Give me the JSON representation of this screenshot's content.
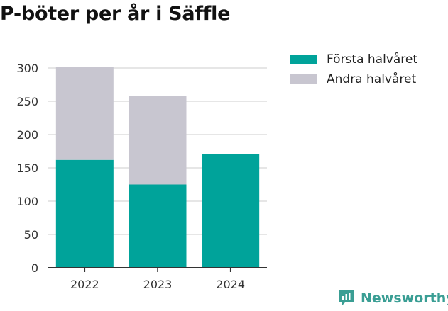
{
  "title": "P-böter per år i Säffle",
  "colors": {
    "first_half": "#00a39a",
    "second_half": "#c8c6d0",
    "grid": "#dddddd",
    "axis": "#333333",
    "brand": "#3a9e94"
  },
  "legend": [
    {
      "label": "Första halvåret",
      "color": "#00a39a"
    },
    {
      "label": "Andra halvåret",
      "color": "#c8c6d0"
    }
  ],
  "brand": {
    "name": "Newsworthy",
    "icon": "newsworthy-logo-icon"
  },
  "chart_data": {
    "type": "bar",
    "stacked": true,
    "categories": [
      "2022",
      "2023",
      "2024"
    ],
    "series": [
      {
        "name": "Första halvåret",
        "values": [
          162,
          125,
          171
        ]
      },
      {
        "name": "Andra halvåret",
        "values": [
          140,
          133,
          0
        ]
      }
    ],
    "ylim": [
      0,
      300
    ],
    "yticks": [
      0,
      50,
      100,
      150,
      200,
      250,
      300
    ],
    "grid": true,
    "legend_position": "top-right"
  }
}
